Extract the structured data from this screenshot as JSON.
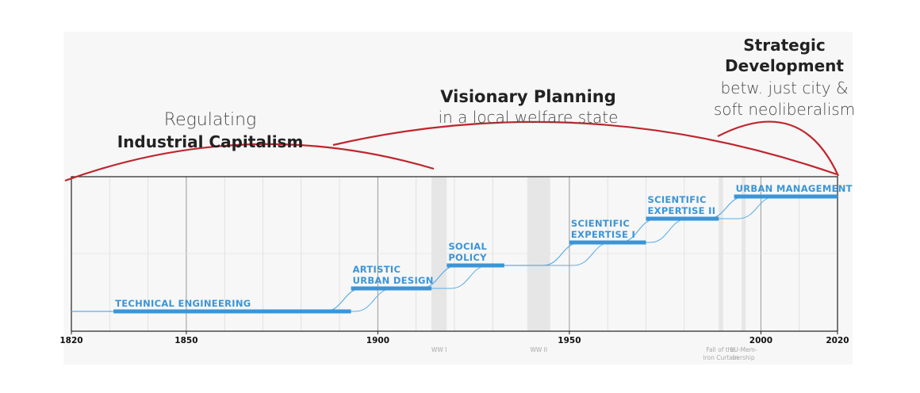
{
  "eras": [
    {
      "light": "Regulating",
      "bold": "Industrial Capitalism",
      "start": 1820,
      "end": 1915
    },
    {
      "bold": "Visionary Planning",
      "light": "in a local welfare state",
      "start": 1888,
      "end": 2020
    },
    {
      "bold1": "Strategic",
      "bold2": "Development",
      "light1": "betw. just city &",
      "light2": "soft neoliberalism",
      "start": 1989,
      "end": 2020
    }
  ],
  "phases": [
    {
      "lines": [
        "TECHNICAL ENGINEERING"
      ],
      "start": 1831,
      "end": 1893,
      "level": 1
    },
    {
      "lines": [
        "ARTISTIC",
        "URBAN DESIGN"
      ],
      "start": 1893,
      "end": 1914,
      "level": 2
    },
    {
      "lines": [
        "SOCIAL",
        "POLICY"
      ],
      "start": 1918,
      "end": 1933,
      "level": 3
    },
    {
      "lines": [
        "SCIENTIFIC",
        "EXPERTISE I"
      ],
      "start": 1950,
      "end": 1970,
      "level": 4
    },
    {
      "lines": [
        "SCIENTIFIC",
        "EXPERTISE II"
      ],
      "start": 1970,
      "end": 1989,
      "level": 5
    },
    {
      "lines": [
        "URBAN MANAGEMENT"
      ],
      "start": 1993,
      "end": 2020,
      "level": 6
    }
  ],
  "events": [
    {
      "lines": [
        "WW I"
      ],
      "start": 1914,
      "end": 1918
    },
    {
      "lines": [
        "WW II"
      ],
      "start": 1939,
      "end": 1945
    },
    {
      "lines": [
        "Fall of the",
        "Iron Curtain"
      ],
      "start": 1989,
      "end": 1990
    },
    {
      "lines": [
        "EU-Mem-",
        "bership"
      ],
      "start": 1995,
      "end": 1996
    }
  ],
  "axis": {
    "min": 1820,
    "max": 2020,
    "ticks": [
      "1820",
      "1850",
      "1900",
      "1950",
      "2000",
      "2020"
    ]
  },
  "colors": {
    "phase": "#3a95d8",
    "curve": "#5aaee6",
    "arc": "#c0262d",
    "event": "#e6e6e6"
  }
}
